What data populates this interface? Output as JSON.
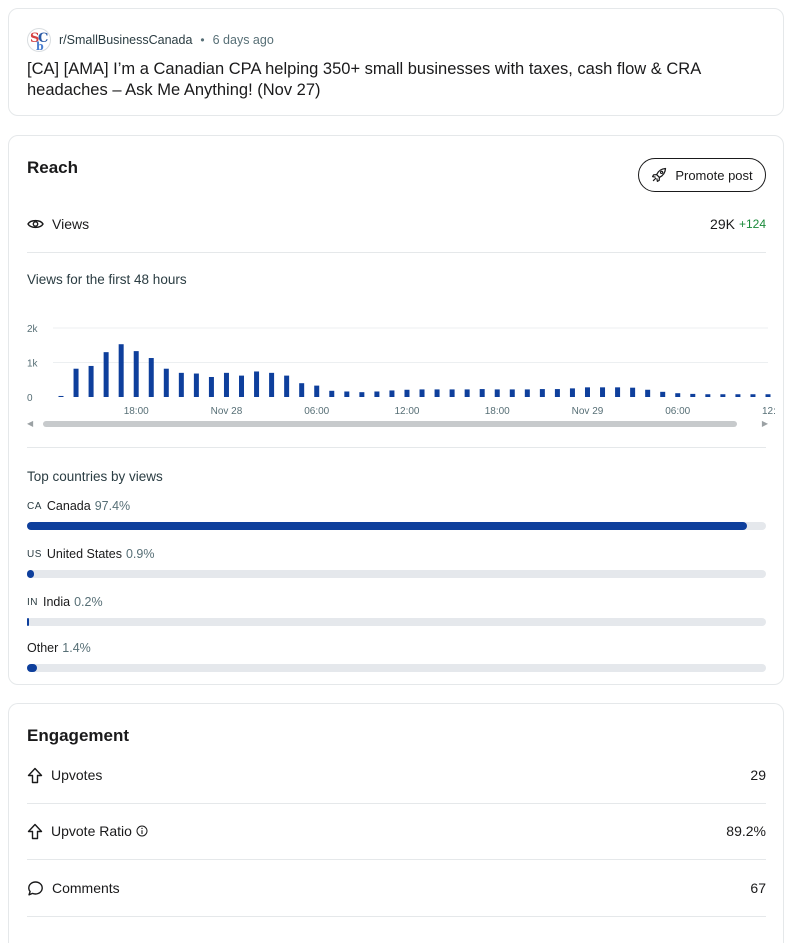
{
  "post": {
    "subreddit": "r/SmallBusinessCanada",
    "separator": "•",
    "time_ago": "6 days ago",
    "title": "[CA] [AMA] I’m a Canadian CPA helping 350+ small businesses with taxes, cash flow & CRA headaches – Ask Me Anything! (Nov 27)"
  },
  "reach": {
    "title": "Reach",
    "promote_label": "Promote post",
    "views_label": "Views",
    "views_value": "29K",
    "views_delta": "+124",
    "chart_caption": "Views for the first 48 hours",
    "countries_caption": "Top countries by views",
    "countries": [
      {
        "code": "CA",
        "name": "Canada",
        "pct_label": "97.4%",
        "pct": 97.4
      },
      {
        "code": "US",
        "name": "United States",
        "pct_label": "0.9%",
        "pct": 0.9
      },
      {
        "code": "IN",
        "name": "India",
        "pct_label": "0.2%",
        "pct": 0.2
      },
      {
        "code": "",
        "name": "Other",
        "pct_label": "1.4%",
        "pct": 1.4
      }
    ]
  },
  "chart_data": {
    "type": "bar",
    "title": "",
    "xlabel": "",
    "ylabel": "",
    "ylim": [
      0,
      2000
    ],
    "y_ticks": [
      "0",
      "1k",
      "2k"
    ],
    "y_tick_values": [
      0,
      1000,
      2000
    ],
    "x_tick_labels": [
      "18:00",
      "Nov 28",
      "06:00",
      "12:00",
      "18:00",
      "Nov 29",
      "06:00",
      "12:"
    ],
    "x_tick_bar_index": [
      5,
      11,
      17,
      23,
      29,
      35,
      41,
      47
    ],
    "values": [
      30,
      820,
      900,
      1300,
      1530,
      1330,
      1130,
      820,
      700,
      680,
      580,
      700,
      620,
      740,
      700,
      620,
      400,
      330,
      180,
      160,
      140,
      160,
      190,
      210,
      220,
      220,
      220,
      220,
      230,
      220,
      220,
      220,
      230,
      230,
      250,
      280,
      280,
      280,
      270,
      210,
      150,
      110,
      90,
      80,
      80,
      80,
      80,
      80
    ],
    "grid": true,
    "legend": "none",
    "bar_color": "#0e3f9c"
  },
  "engagement": {
    "title": "Engagement",
    "upvotes_label": "Upvotes",
    "upvotes_value": "29",
    "ratio_label": "Upvote Ratio",
    "ratio_value": "89.2%",
    "comments_label": "Comments",
    "comments_value": "67"
  },
  "icons": {
    "eye": "eye-icon",
    "rocket": "rocket-icon",
    "upvote": "upvote-arrow-icon",
    "info": "info-icon",
    "comment": "comment-bubble-icon"
  }
}
